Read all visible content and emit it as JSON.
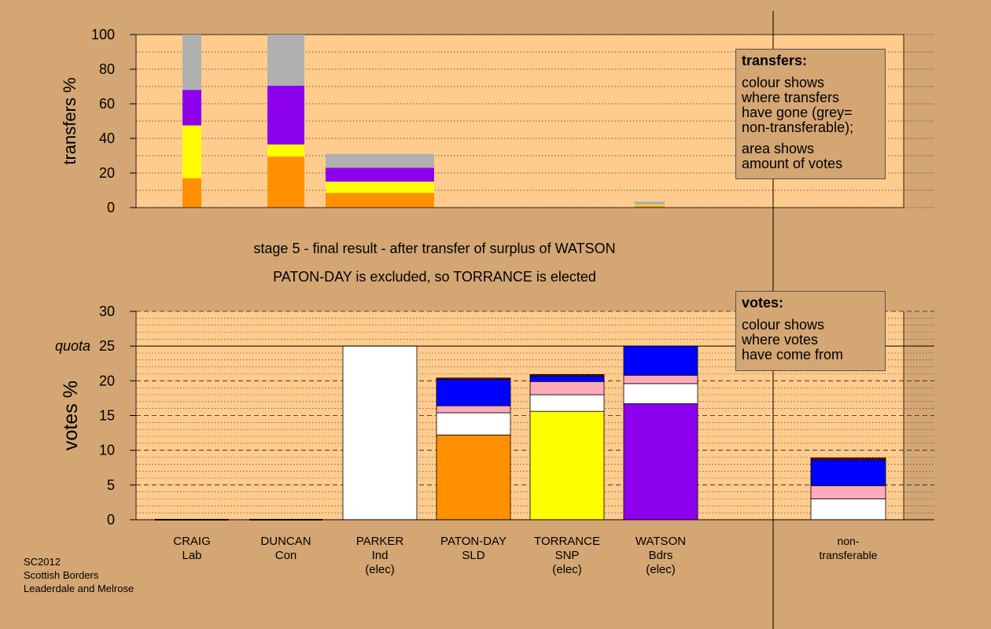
{
  "chart_data": [
    {
      "type": "bar",
      "stacked": true,
      "ylabel": "transfers %",
      "ylim": [
        0,
        100
      ],
      "yticks": [
        0,
        20,
        40,
        60,
        80,
        100
      ],
      "grid": "dotted",
      "bars": [
        {
          "x_from": "CRAIG",
          "x_to": "CRAIG",
          "segments": [
            {
              "color": "#ff9000",
              "value": 17
            },
            {
              "color": "#ffff00",
              "value": 30.5
            },
            {
              "color": "#8c00ee",
              "value": 20.5
            },
            {
              "color": "#b0b0b0",
              "value": 32
            }
          ]
        },
        {
          "x_from": "DUNCAN",
          "x_to": "DUNCAN",
          "segments": [
            {
              "color": "#ff9000",
              "value": 29.5
            },
            {
              "color": "#ffff00",
              "value": 7
            },
            {
              "color": "#8c00ee",
              "value": 34
            },
            {
              "color": "#b0b0b0",
              "value": 29.5
            }
          ]
        },
        {
          "x_from": "PARKER",
          "x_to": "PATON-DAY",
          "segments": [
            {
              "color": "#ff9000",
              "value": 8.5
            },
            {
              "color": "#ffff00",
              "value": 6.5
            },
            {
              "color": "#8c00ee",
              "value": 8
            },
            {
              "color": "#b0b0b0",
              "value": 8
            }
          ]
        },
        {
          "x_from": "WATSON",
          "x_to": "WATSON",
          "segments": [
            {
              "color": "#ff9000",
              "value": 1
            },
            {
              "color": "#ffff00",
              "value": 0.5
            },
            {
              "color": "#b0b0b0",
              "value": 2
            }
          ]
        }
      ]
    },
    {
      "type": "bar",
      "stacked": true,
      "ylabel": "votes %",
      "ylim": [
        0,
        30
      ],
      "yticks": [
        0,
        5,
        10,
        15,
        20,
        25,
        30
      ],
      "quota": 25,
      "quota_label": "quota",
      "grid": "dashed",
      "categories": [
        {
          "key": "CRAIG",
          "label": [
            "CRAIG",
            "Lab"
          ]
        },
        {
          "key": "DUNCAN",
          "label": [
            "DUNCAN",
            "Con"
          ]
        },
        {
          "key": "PARKER",
          "label": [
            "PARKER",
            "Ind",
            "(elec)"
          ]
        },
        {
          "key": "PATON-DAY",
          "label": [
            "PATON-DAY",
            "SLD"
          ]
        },
        {
          "key": "TORRANCE",
          "label": [
            "TORRANCE",
            "SNP",
            "(elec)"
          ]
        },
        {
          "key": "WATSON",
          "label": [
            "WATSON",
            "Bdrs",
            "(elec)"
          ]
        },
        {
          "key": "non-transferable",
          "label": [
            "non-",
            "transferable"
          ]
        }
      ],
      "series_colors": {
        "own": "party",
        "Ind": "#ffffff",
        "SLD": "#ff9000",
        "SNP": "#ffff00",
        "Bdrs": "#8c00ee",
        "pink": "#ffaabb",
        "blue": "#0000ff",
        "maroon": "#800000"
      },
      "stacks": [
        {
          "category": "CRAIG",
          "segments": []
        },
        {
          "category": "DUNCAN",
          "segments": []
        },
        {
          "category": "PARKER",
          "segments": [
            {
              "color": "#ffffff",
              "value": 25
            }
          ]
        },
        {
          "category": "PATON-DAY",
          "segments": [
            {
              "color": "#ff9000",
              "value": 12.2
            },
            {
              "color": "#ffffff",
              "value": 3.2
            },
            {
              "color": "#ffaabb",
              "value": 1
            },
            {
              "color": "#0000ff",
              "value": 3.8
            },
            {
              "color": "#800000",
              "value": 0.2
            }
          ]
        },
        {
          "category": "TORRANCE",
          "segments": [
            {
              "color": "#ffff00",
              "value": 15.6
            },
            {
              "color": "#ffffff",
              "value": 2.4
            },
            {
              "color": "#ffaabb",
              "value": 1.9
            },
            {
              "color": "#0000ff",
              "value": 0.8
            },
            {
              "color": "#800000",
              "value": 0.2
            }
          ]
        },
        {
          "category": "WATSON",
          "segments": [
            {
              "color": "#8c00ee",
              "value": 16.7
            },
            {
              "color": "#ffffff",
              "value": 2.9
            },
            {
              "color": "#ffaabb",
              "value": 1.2
            },
            {
              "color": "#0000ff",
              "value": 4.2
            }
          ]
        },
        {
          "category": "non-transferable",
          "segments": [
            {
              "color": "#ffffff",
              "value": 3
            },
            {
              "color": "#ffaabb",
              "value": 1.9
            },
            {
              "color": "#0000ff",
              "value": 3.7
            },
            {
              "color": "#800000",
              "value": 0.3
            }
          ]
        }
      ]
    }
  ],
  "stage_text": "stage 5 - final result - after transfer of surplus of WATSON",
  "result_text": "PATON-DAY is excluded, so TORRANCE is elected",
  "transfers_legend": {
    "title": "transfers:",
    "lines1": [
      "colour shows",
      "where transfers",
      "have gone (grey=",
      "non-transferable);"
    ],
    "lines2": [
      "area shows",
      "amount of votes"
    ]
  },
  "votes_legend": {
    "title": "votes:",
    "lines": [
      "colour shows",
      "where votes",
      "have come from"
    ]
  },
  "footer": [
    "SC2012",
    "Scottish Borders",
    "Leaderdale and Melrose"
  ]
}
